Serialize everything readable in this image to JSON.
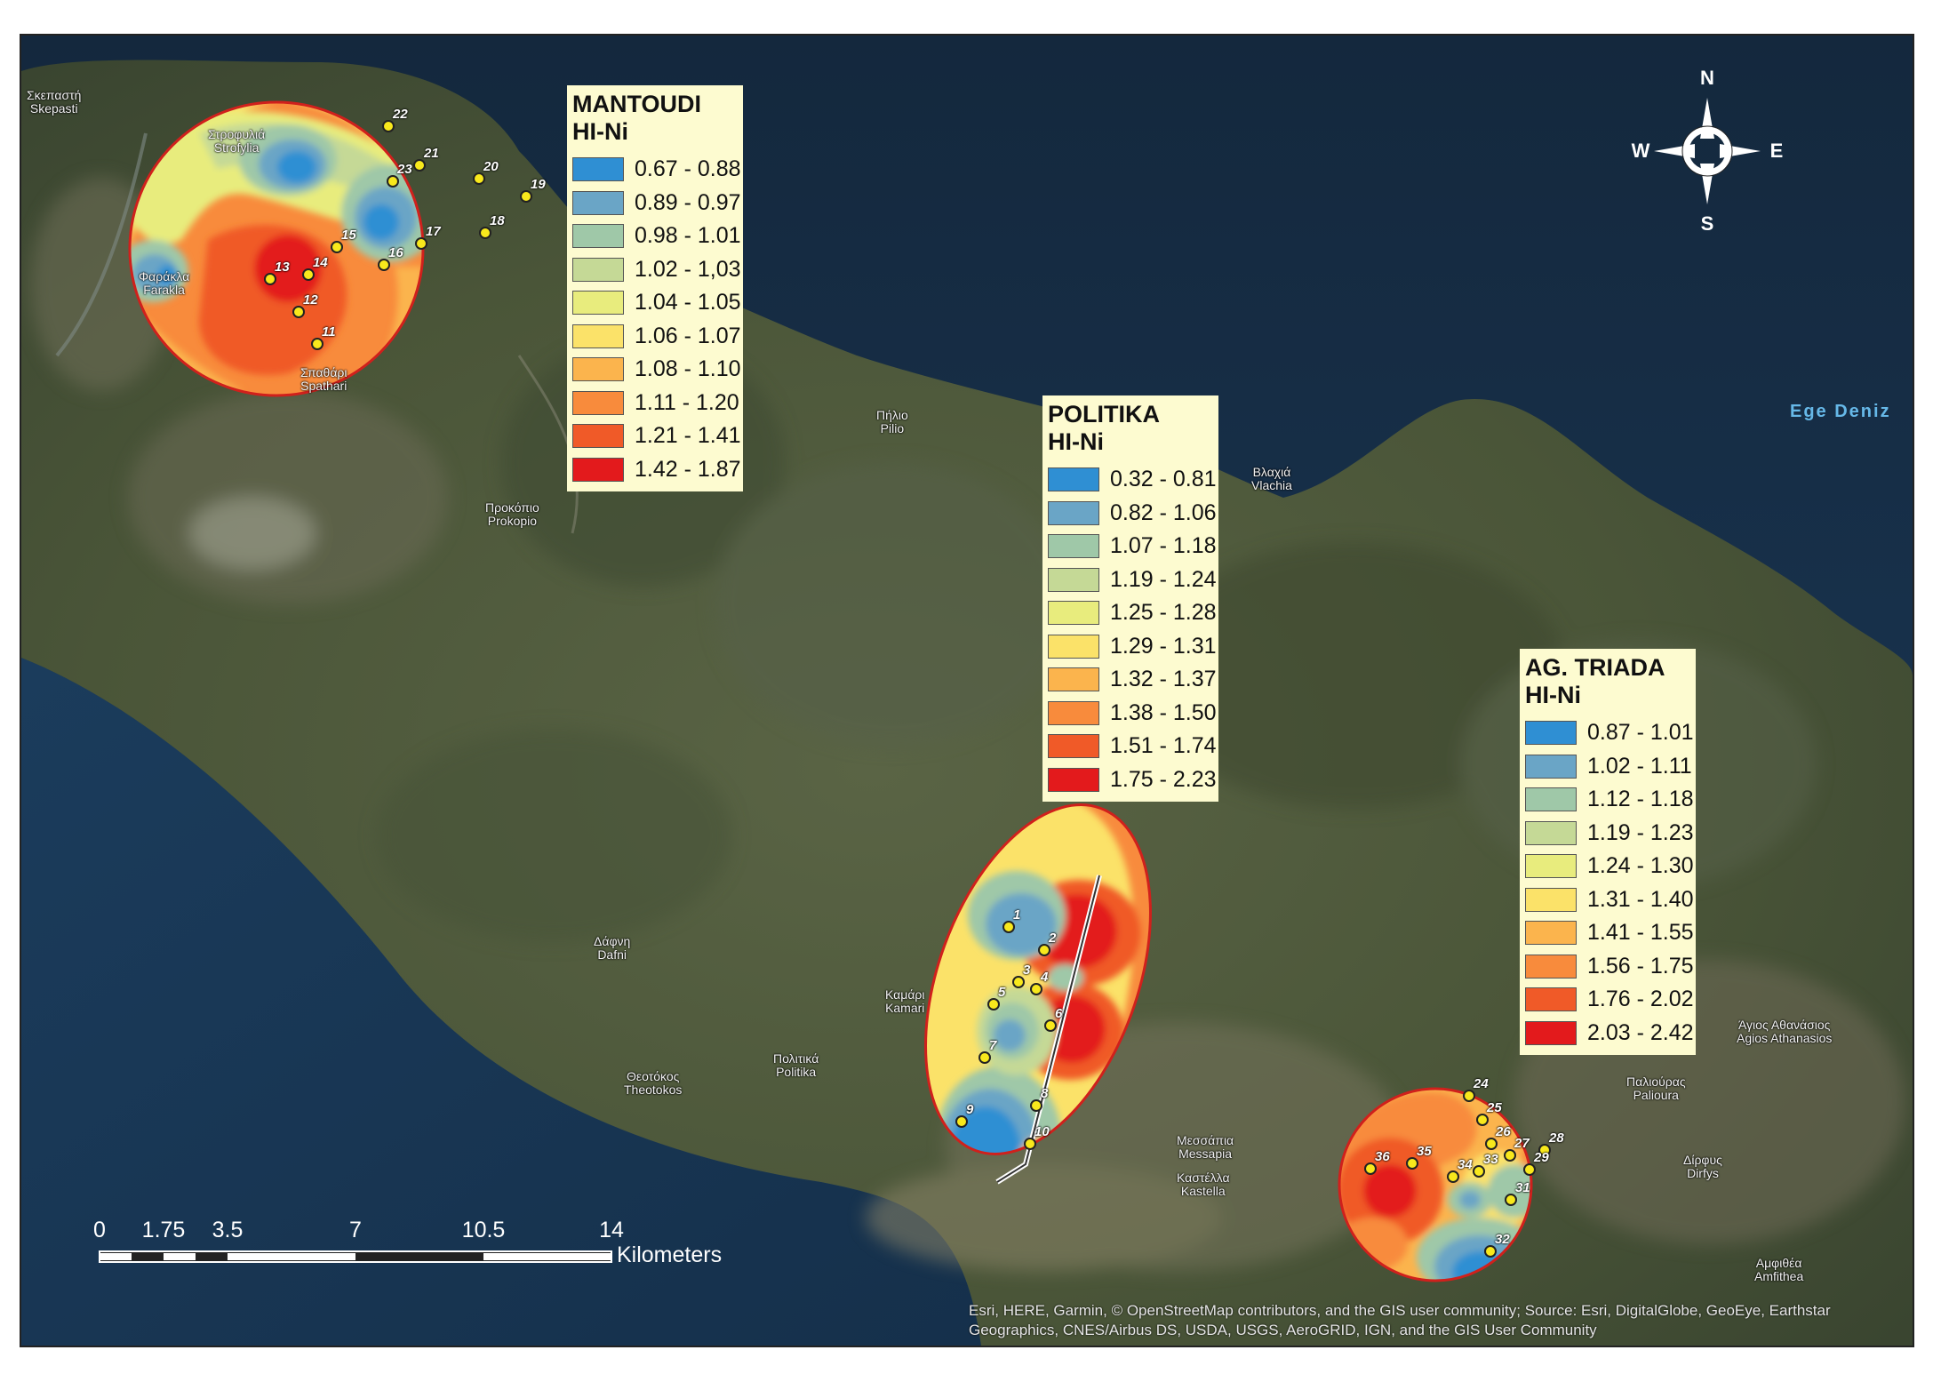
{
  "legends": {
    "mantoudi": {
      "title": "MANTOUDI",
      "subtitle": "HI-Ni",
      "classes": [
        {
          "label": "0.67 - 0.88",
          "color": "#2f8fd3"
        },
        {
          "label": "0.89 - 0.97",
          "color": "#6aa5c6"
        },
        {
          "label": "0.98 - 1.01",
          "color": "#9fc8a8"
        },
        {
          "label": "1.02 - 1,03",
          "color": "#c5d996"
        },
        {
          "label": "1.04 - 1.05",
          "color": "#e8ec7d"
        },
        {
          "label": "1.06 - 1.07",
          "color": "#fbe269"
        },
        {
          "label": "1.08 - 1.10",
          "color": "#fbb44d"
        },
        {
          "label": "1.11 - 1.20",
          "color": "#f88b3c"
        },
        {
          "label": "1.21 - 1.41",
          "color": "#f05a28"
        },
        {
          "label": "1.42 - 1.87",
          "color": "#e31a1c"
        }
      ]
    },
    "politika": {
      "title": "POLITIKA",
      "subtitle": "HI-Ni",
      "classes": [
        {
          "label": "0.32 - 0.81",
          "color": "#2f8fd3"
        },
        {
          "label": "0.82 - 1.06",
          "color": "#6aa5c6"
        },
        {
          "label": "1.07 - 1.18",
          "color": "#9fc8a8"
        },
        {
          "label": "1.19 - 1.24",
          "color": "#c5d996"
        },
        {
          "label": "1.25 - 1.28",
          "color": "#e8ec7d"
        },
        {
          "label": "1.29 - 1.31",
          "color": "#fbe269"
        },
        {
          "label": "1.32 - 1.37",
          "color": "#fbb44d"
        },
        {
          "label": "1.38 - 1.50",
          "color": "#f88b3c"
        },
        {
          "label": "1.51 - 1.74",
          "color": "#f05a28"
        },
        {
          "label": "1.75 - 2.23",
          "color": "#e31a1c"
        }
      ]
    },
    "agtriada": {
      "title": "AG. TRIADA",
      "subtitle": "HI-Ni",
      "classes": [
        {
          "label": "0.87 - 1.01",
          "color": "#2f8fd3"
        },
        {
          "label": "1.02 - 1.11",
          "color": "#6aa5c6"
        },
        {
          "label": "1.12 - 1.18",
          "color": "#9fc8a8"
        },
        {
          "label": "1.19 - 1.23",
          "color": "#c5d996"
        },
        {
          "label": "1.24 - 1.30",
          "color": "#e8ec7d"
        },
        {
          "label": "1.31 - 1.40",
          "color": "#fbe269"
        },
        {
          "label": "1.41 - 1.55",
          "color": "#fbb44d"
        },
        {
          "label": "1.56 - 1.75",
          "color": "#f88b3c"
        },
        {
          "label": "1.76 - 2.02",
          "color": "#f05a28"
        },
        {
          "label": "2.03 - 2.42",
          "color": "#e31a1c"
        }
      ]
    }
  },
  "places": {
    "skepasti": {
      "gr": "Σκεπαστή",
      "en": "Skepasti"
    },
    "strofylia": {
      "gr": "Στροφυλιά",
      "en": "Strofylia"
    },
    "farakla": {
      "gr": "Φαράκλα",
      "en": "Farakla"
    },
    "spathari": {
      "gr": "Σπαθάρι",
      "en": "Spathari"
    },
    "pilio": {
      "gr": "Πήλιο",
      "en": "Pilio"
    },
    "prokopio": {
      "gr": "Προκόπιο",
      "en": "Prokopio"
    },
    "vlachia": {
      "gr": "Βλαχιά",
      "en": "Vlachia"
    },
    "dafni": {
      "gr": "Δάφνη",
      "en": "Dafni"
    },
    "kamari": {
      "gr": "Καμάρι",
      "en": "Kamari"
    },
    "theotokos": {
      "gr": "Θεοτόκος",
      "en": "Theotokos"
    },
    "politika": {
      "gr": "Πολιτικά",
      "en": "Politika"
    },
    "messapia": {
      "gr": "Μεσσάπια",
      "en": "Messapia"
    },
    "kastella": {
      "gr": "Καστέλλα",
      "en": "Kastella"
    },
    "palioura": {
      "gr": "Παλιούρας",
      "en": "Palioura"
    },
    "agiosathanasios": {
      "gr": "Άγιος Αθανάσιος",
      "en": "Agios Athanasios"
    },
    "dirfys": {
      "gr": "Δίρφυς",
      "en": "Dirfys"
    },
    "amfithea": {
      "gr": "Αμφιθέα",
      "en": "Amfithea"
    }
  },
  "sea_label": "Ege Deniz",
  "compass": {
    "n": "N",
    "s": "S",
    "e": "E",
    "w": "W"
  },
  "scalebar": {
    "ticks": [
      "0",
      "1.75",
      "3.5",
      "7",
      "10.5",
      "14"
    ],
    "unit": "Kilometers"
  },
  "sample_points": {
    "mantoudi": [
      "11",
      "12",
      "13",
      "14",
      "15",
      "16",
      "17",
      "18",
      "19",
      "20",
      "21",
      "22",
      "23"
    ],
    "politika": [
      "1",
      "2",
      "3",
      "4",
      "5",
      "6",
      "7",
      "8",
      "9",
      "10"
    ],
    "agtriada": [
      "24",
      "25",
      "26",
      "27",
      "28",
      "29",
      "31",
      "32",
      "33",
      "34",
      "35",
      "36"
    ]
  },
  "attribution": "Esri, HERE, Garmin, © OpenStreetMap contributors, and the GIS user community; Source: Esri, DigitalGlobe, GeoEye, Earthstar Geographics, CNES/Airbus DS, USDA, USGS, AeroGRID, IGN, and the GIS User Community"
}
